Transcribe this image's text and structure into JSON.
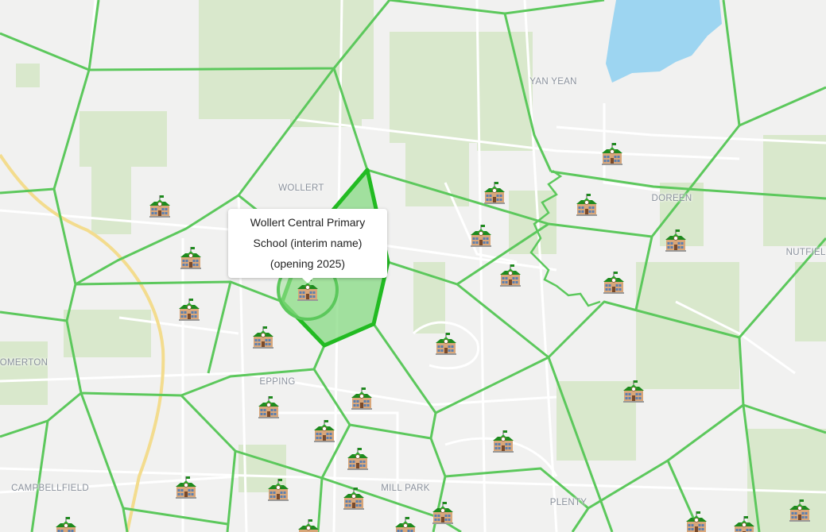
{
  "map": {
    "colors": {
      "land": "#f1f1f0",
      "park": "#d9e8cc",
      "water": "#9dd5f1",
      "zone_line": "#5cc85c",
      "selected_zone": "#22bb22",
      "road": "#ffffff",
      "highway": "#f3dc8e"
    },
    "suburb_labels": [
      {
        "id": "yan-yean",
        "text": "YAN YEAN"
      },
      {
        "id": "wollert",
        "text": "WOLLERT"
      },
      {
        "id": "doreen",
        "text": "DOREEN"
      },
      {
        "id": "nutfield",
        "text": "NUTFIELD"
      },
      {
        "id": "somerton",
        "text": "OMERTON"
      },
      {
        "id": "epping",
        "text": "EPPING"
      },
      {
        "id": "campbellfield",
        "text": "CAMPBELLFIELD"
      },
      {
        "id": "mill-park",
        "text": "MILL PARK"
      },
      {
        "id": "plenty",
        "text": "PLENTY"
      }
    ],
    "marker_icon": "school-icon",
    "tooltip": {
      "lines": [
        "Wollert Central Primary",
        "School (interim name)",
        "(opening 2025)"
      ]
    }
  }
}
